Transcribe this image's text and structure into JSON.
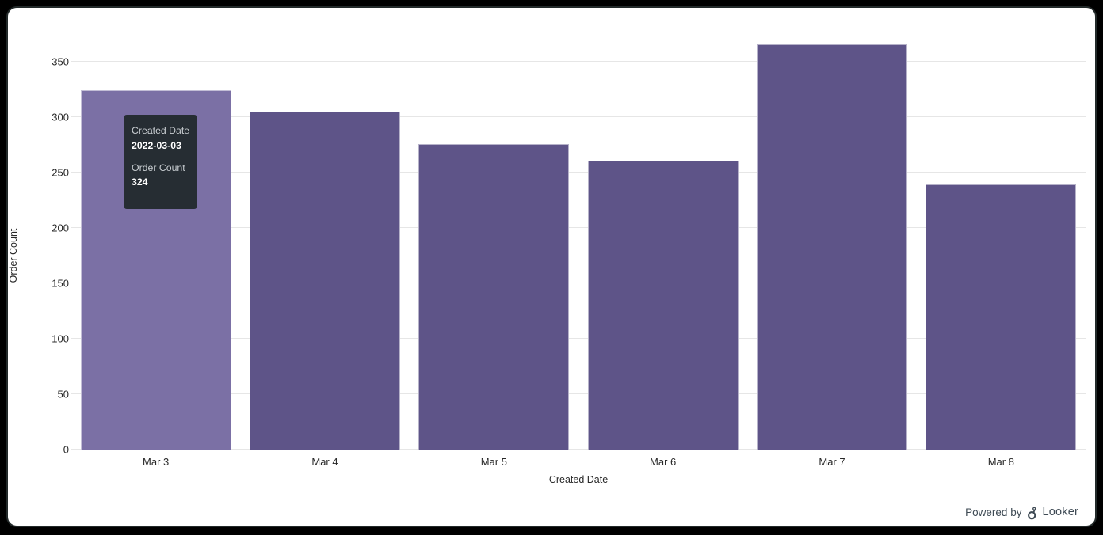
{
  "chart_data": {
    "type": "bar",
    "categories": [
      "Mar 3",
      "Mar 4",
      "Mar 5",
      "Mar 6",
      "Mar 7",
      "Mar 8"
    ],
    "values": [
      324,
      305,
      276,
      261,
      366,
      239
    ],
    "title": "",
    "xlabel": "Created Date",
    "ylabel": "Order Count",
    "ylim": [
      0,
      350
    ],
    "ytick_interval": 50,
    "yticks": [
      0,
      50,
      100,
      150,
      200,
      250,
      300,
      350
    ],
    "grid": true,
    "legend": "none",
    "bar_color": "#5e5488",
    "bar_hover_color": "#7b70a5",
    "hovered_index": 0
  },
  "tooltip": {
    "field1_label": "Created Date",
    "field1_value": "2022-03-03",
    "field2_label": "Order Count",
    "field2_value": "324",
    "background": "#262d33"
  },
  "branding": {
    "powered_by": "Powered by",
    "brand": "Looker"
  }
}
